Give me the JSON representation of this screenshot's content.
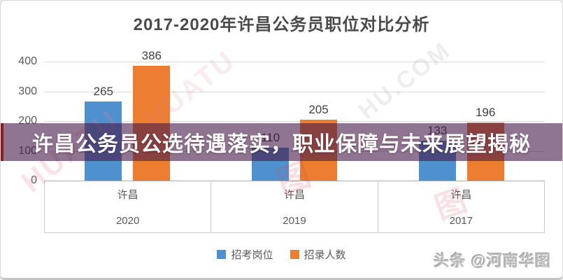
{
  "card": {
    "title": "2017-2020年许昌公务员职位对比分析"
  },
  "overlay_banner": {
    "text": "许昌公务员公选待遇落实，职业保障与未来展望揭秘",
    "background_color": "rgba(68,25,71,0.6)",
    "edge_color": "#8b1f24"
  },
  "watermarks": {
    "bottom_right_credit": "头条 @河南华图",
    "diagonal_left": "HUATU",
    "diagonal_mid": "HUATU",
    "diagonal_right": "HU.COM",
    "logo_glyph": "图"
  },
  "chart_data": {
    "type": "bar",
    "title": "2017-2020年许昌公务员职位对比分析",
    "groups": [
      {
        "region": "许昌",
        "year": "2020"
      },
      {
        "region": "许昌",
        "year": "2019"
      },
      {
        "region": "许昌",
        "year": "2017"
      }
    ],
    "series": [
      {
        "name": "招考岗位",
        "color": "#4f90ce",
        "values": [
          265,
          110,
          133
        ]
      },
      {
        "name": "招录人数",
        "color": "#ed7d31",
        "values": [
          386,
          205,
          196
        ]
      }
    ],
    "ylim": [
      0,
      400
    ],
    "yticks": [
      0,
      100,
      200,
      300,
      400
    ],
    "grid": true,
    "legend_position": "bottom"
  }
}
